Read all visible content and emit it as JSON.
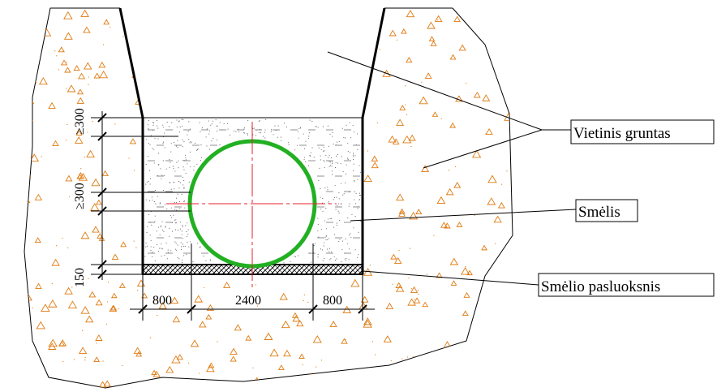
{
  "labels": {
    "vietinis_gruntas": "Vietinis gruntas",
    "smelis": "Smėlis",
    "smelio_pasluoksnis": "Smėlio pasluoksnis"
  },
  "dimensions": {
    "top_cover": "≥300",
    "side_cover": "≥300",
    "bedding": "150",
    "left_width": "800",
    "pipe_width": "2400",
    "right_width": "800"
  },
  "colors": {
    "pipe": "#22b022",
    "centerline": "#e8202a",
    "soil_marks": "#e07a10",
    "lines": "#000000"
  }
}
